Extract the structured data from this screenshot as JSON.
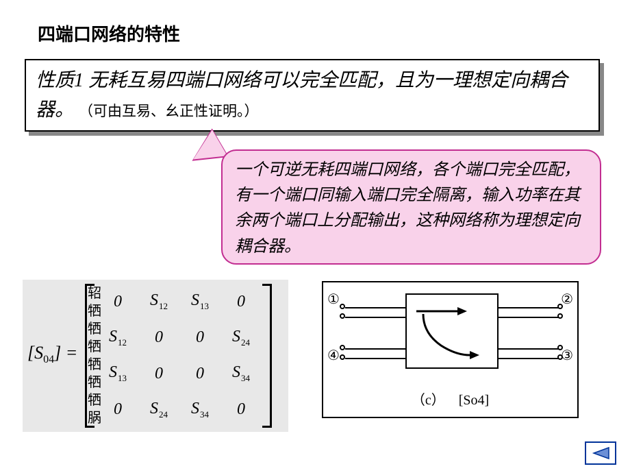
{
  "colors": {
    "page_bg": "#ffffff",
    "text": "#000000",
    "box_border": "#000000",
    "box_shadow": "#888888",
    "callout_bg": "#f9d2ea",
    "callout_border": "#c22d91",
    "matrix_bg": "#e8e8e8",
    "nav_border": "#003399",
    "nav_fill": "#6b8fd6"
  },
  "fonts": {
    "body": "KaiTi",
    "heading_size_pt": 20,
    "property_size_pt": 21,
    "callout_size_pt": 18,
    "matrix_size_pt": 18
  },
  "heading": "四端口网络的特性",
  "property": {
    "label": "性质1",
    "main": "无耗互易四端口网络可以完全匹配，且为一理想定向耦合器。",
    "note": "（可由互易、幺正性证明。）"
  },
  "callout": "一个可逆无耗四端口网络，各个端口完全匹配，有一个端口同输入端口完全隔离，输入功率在其余两个端口上分配输出，这种网络称为理想定向耦合器。",
  "matrix": {
    "prefix_open": "[",
    "symbol": "S",
    "sub": "04",
    "prefix_close": "]",
    "equals": "=",
    "rows": [
      [
        "0",
        "S|12",
        "S|13",
        "0"
      ],
      [
        "S|12",
        "0",
        "0",
        "S|24"
      ],
      [
        "S|13",
        "0",
        "0",
        "S|34"
      ],
      [
        "0",
        "S|24",
        "S|34",
        "0"
      ]
    ],
    "garbled_column": [
      "轺",
      "牺",
      "牺",
      "牺",
      "牺",
      "牺",
      "牺",
      "脶"
    ]
  },
  "diagram": {
    "ports": {
      "1": "①",
      "2": "②",
      "3": "③",
      "4": "④"
    },
    "caption_left": "（c）",
    "caption_right": "[So4]"
  },
  "nav": {
    "direction": "back"
  }
}
